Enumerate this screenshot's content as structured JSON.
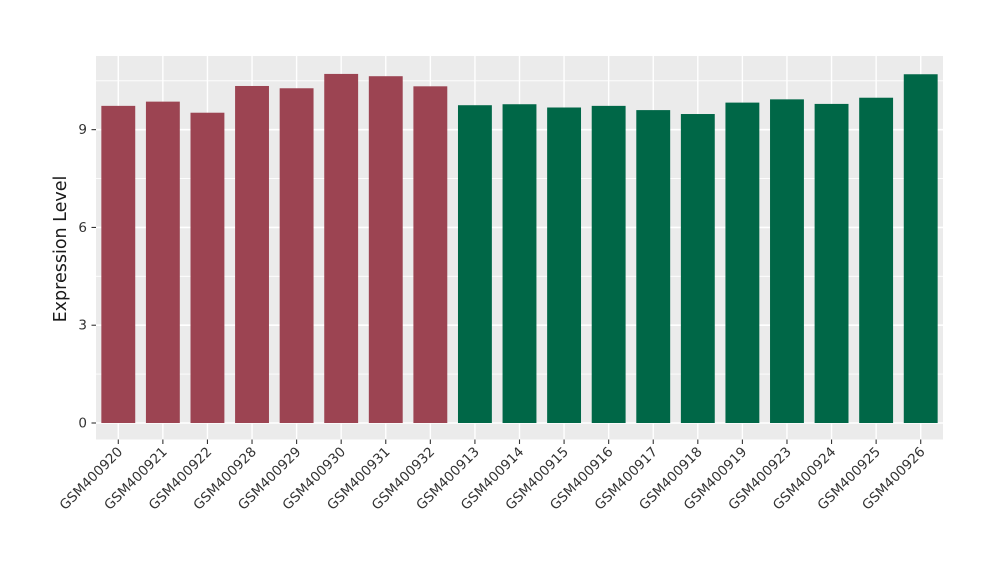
{
  "figure": {
    "background_color": "#FFFFFF",
    "panel_color": "#EBEBEB",
    "grid_color": "#FFFFFF",
    "tick_text_color": "#333333",
    "axis_title_color": "#1A1A1A"
  },
  "chart_data": {
    "type": "bar",
    "title": "",
    "xlabel": "",
    "ylabel": "Expression Level",
    "categories": [
      "GSM400920",
      "GSM400921",
      "GSM400922",
      "GSM400928",
      "GSM400929",
      "GSM400930",
      "GSM400931",
      "GSM400932",
      "GSM400913",
      "GSM400914",
      "GSM400915",
      "GSM400916",
      "GSM400917",
      "GSM400918",
      "GSM400919",
      "GSM400923",
      "GSM400924",
      "GSM400925",
      "GSM400926"
    ],
    "values": [
      9.73,
      9.86,
      9.52,
      10.34,
      10.27,
      10.71,
      10.64,
      10.33,
      9.75,
      9.78,
      9.68,
      9.73,
      9.6,
      9.48,
      9.83,
      9.93,
      9.79,
      9.98,
      10.7
    ],
    "bar_groups": [
      0,
      0,
      0,
      0,
      0,
      0,
      0,
      0,
      1,
      1,
      1,
      1,
      1,
      1,
      1,
      1,
      1,
      1,
      1
    ],
    "group_colors": [
      "#9C4452",
      "#006747"
    ],
    "yticks": [
      0,
      3,
      6,
      9
    ],
    "yticks_minor": [
      1.5,
      4.5,
      7.5,
      10.5
    ],
    "ylim": [
      0,
      11.26
    ],
    "bar_width_fraction": 0.76,
    "grid": true,
    "legend_position": "none",
    "x_label_rotation_deg": 45
  }
}
